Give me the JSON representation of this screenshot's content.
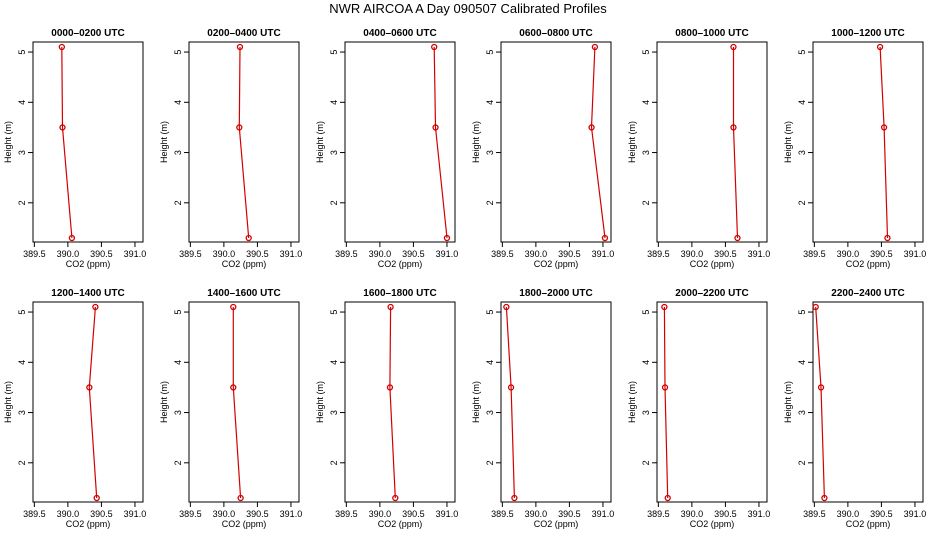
{
  "title": "NWR AIRCOA A  Day 090507  Calibrated Profiles",
  "chart_data": [
    {
      "type": "line",
      "title": "0000–0200 UTC",
      "xlabel": "CO2 (ppm)",
      "ylabel": "Height (m)",
      "xlim": [
        389.5,
        391.0
      ],
      "ylim": [
        1.3,
        5.1
      ],
      "xticks": [
        "389.5",
        "390.0",
        "390.5",
        "391.0"
      ],
      "yticks": [
        "2",
        "3",
        "4",
        "5"
      ],
      "series": [
        {
          "x": [
            389.91,
            389.92,
            390.06
          ],
          "y": [
            5.1,
            3.5,
            1.3
          ]
        }
      ]
    },
    {
      "type": "line",
      "title": "0200–0400 UTC",
      "xlabel": "CO2 (ppm)",
      "ylabel": "Height (m)",
      "xlim": [
        389.5,
        391.0
      ],
      "ylim": [
        1.3,
        5.1
      ],
      "xticks": [
        "389.5",
        "390.0",
        "390.5",
        "391.0"
      ],
      "yticks": [
        "2",
        "3",
        "4",
        "5"
      ],
      "series": [
        {
          "x": [
            390.24,
            390.23,
            390.37
          ],
          "y": [
            5.1,
            3.5,
            1.3
          ]
        }
      ]
    },
    {
      "type": "line",
      "title": "0400–0600 UTC",
      "xlabel": "CO2 (ppm)",
      "ylabel": "Height (m)",
      "xlim": [
        389.5,
        391.0
      ],
      "ylim": [
        1.3,
        5.1
      ],
      "xticks": [
        "389.5",
        "390.0",
        "390.5",
        "391.0"
      ],
      "yticks": [
        "2",
        "3",
        "4",
        "5"
      ],
      "series": [
        {
          "x": [
            390.81,
            390.83,
            391.0
          ],
          "y": [
            5.1,
            3.5,
            1.3
          ]
        }
      ]
    },
    {
      "type": "line",
      "title": "0600–0800 UTC",
      "xlabel": "CO2 (ppm)",
      "ylabel": "Height (m)",
      "xlim": [
        389.5,
        391.0
      ],
      "ylim": [
        1.3,
        5.1
      ],
      "xticks": [
        "389.5",
        "390.0",
        "390.5",
        "391.0"
      ],
      "yticks": [
        "2",
        "3",
        "4",
        "5"
      ],
      "series": [
        {
          "x": [
            390.88,
            390.83,
            391.03
          ],
          "y": [
            5.1,
            3.5,
            1.3
          ]
        }
      ]
    },
    {
      "type": "line",
      "title": "0800–1000 UTC",
      "xlabel": "CO2 (ppm)",
      "ylabel": "Height (m)",
      "xlim": [
        389.5,
        391.0
      ],
      "ylim": [
        1.3,
        5.1
      ],
      "xticks": [
        "389.5",
        "390.0",
        "390.5",
        "391.0"
      ],
      "yticks": [
        "2",
        "3",
        "4",
        "5"
      ],
      "series": [
        {
          "x": [
            390.62,
            390.62,
            390.68
          ],
          "y": [
            5.1,
            3.5,
            1.3
          ]
        }
      ]
    },
    {
      "type": "line",
      "title": "1000–1200 UTC",
      "xlabel": "CO2 (ppm)",
      "ylabel": "Height (m)",
      "xlim": [
        389.5,
        391.0
      ],
      "ylim": [
        1.3,
        5.1
      ],
      "xticks": [
        "389.5",
        "390.0",
        "390.5",
        "391.0"
      ],
      "yticks": [
        "2",
        "3",
        "4",
        "5"
      ],
      "series": [
        {
          "x": [
            390.48,
            390.54,
            390.59
          ],
          "y": [
            5.1,
            3.5,
            1.3
          ]
        }
      ]
    },
    {
      "type": "line",
      "title": "1200–1400 UTC",
      "xlabel": "CO2 (ppm)",
      "ylabel": "Height (m)",
      "xlim": [
        389.5,
        391.0
      ],
      "ylim": [
        1.3,
        5.1
      ],
      "xticks": [
        "389.5",
        "390.0",
        "390.5",
        "391.0"
      ],
      "yticks": [
        "2",
        "3",
        "4",
        "5"
      ],
      "series": [
        {
          "x": [
            390.41,
            390.32,
            390.43
          ],
          "y": [
            5.1,
            3.5,
            1.3
          ]
        }
      ]
    },
    {
      "type": "line",
      "title": "1400–1600 UTC",
      "xlabel": "CO2 (ppm)",
      "ylabel": "Height (m)",
      "xlim": [
        389.5,
        391.0
      ],
      "ylim": [
        1.3,
        5.1
      ],
      "xticks": [
        "389.5",
        "390.0",
        "390.5",
        "391.0"
      ],
      "yticks": [
        "2",
        "3",
        "4",
        "5"
      ],
      "series": [
        {
          "x": [
            390.14,
            390.14,
            390.25
          ],
          "y": [
            5.1,
            3.5,
            1.3
          ]
        }
      ]
    },
    {
      "type": "line",
      "title": "1600–1800 UTC",
      "xlabel": "CO2 (ppm)",
      "ylabel": "Height (m)",
      "xlim": [
        389.5,
        391.0
      ],
      "ylim": [
        1.3,
        5.1
      ],
      "xticks": [
        "389.5",
        "390.0",
        "390.5",
        "391.0"
      ],
      "yticks": [
        "2",
        "3",
        "4",
        "5"
      ],
      "series": [
        {
          "x": [
            390.16,
            390.15,
            390.23
          ],
          "y": [
            5.1,
            3.5,
            1.3
          ]
        }
      ]
    },
    {
      "type": "line",
      "title": "1800–2000 UTC",
      "xlabel": "CO2 (ppm)",
      "ylabel": "Height (m)",
      "xlim": [
        389.5,
        391.0
      ],
      "ylim": [
        1.3,
        5.1
      ],
      "xticks": [
        "389.5",
        "390.0",
        "390.5",
        "391.0"
      ],
      "yticks": [
        "2",
        "3",
        "4",
        "5"
      ],
      "series": [
        {
          "x": [
            389.56,
            389.63,
            389.68
          ],
          "y": [
            5.1,
            3.5,
            1.3
          ]
        }
      ]
    },
    {
      "type": "line",
      "title": "2000–2200 UTC",
      "xlabel": "CO2 (ppm)",
      "ylabel": "Height (m)",
      "xlim": [
        389.5,
        391.0
      ],
      "ylim": [
        1.3,
        5.1
      ],
      "xticks": [
        "389.5",
        "390.0",
        "390.5",
        "391.0"
      ],
      "yticks": [
        "2",
        "3",
        "4",
        "5"
      ],
      "series": [
        {
          "x": [
            389.59,
            389.6,
            389.64
          ],
          "y": [
            5.1,
            3.5,
            1.3
          ]
        }
      ]
    },
    {
      "type": "line",
      "title": "2200–2400 UTC",
      "xlabel": "CO2 (ppm)",
      "ylabel": "Height (m)",
      "xlim": [
        389.5,
        391.0
      ],
      "ylim": [
        1.3,
        5.1
      ],
      "xticks": [
        "389.5",
        "390.0",
        "390.5",
        "391.0"
      ],
      "yticks": [
        "2",
        "3",
        "4",
        "5"
      ],
      "series": [
        {
          "x": [
            389.52,
            389.6,
            389.65
          ],
          "y": [
            5.1,
            3.5,
            1.3
          ]
        }
      ]
    }
  ],
  "colors": {
    "series": "#d40000",
    "axis": "#000000",
    "background": "#ffffff"
  }
}
